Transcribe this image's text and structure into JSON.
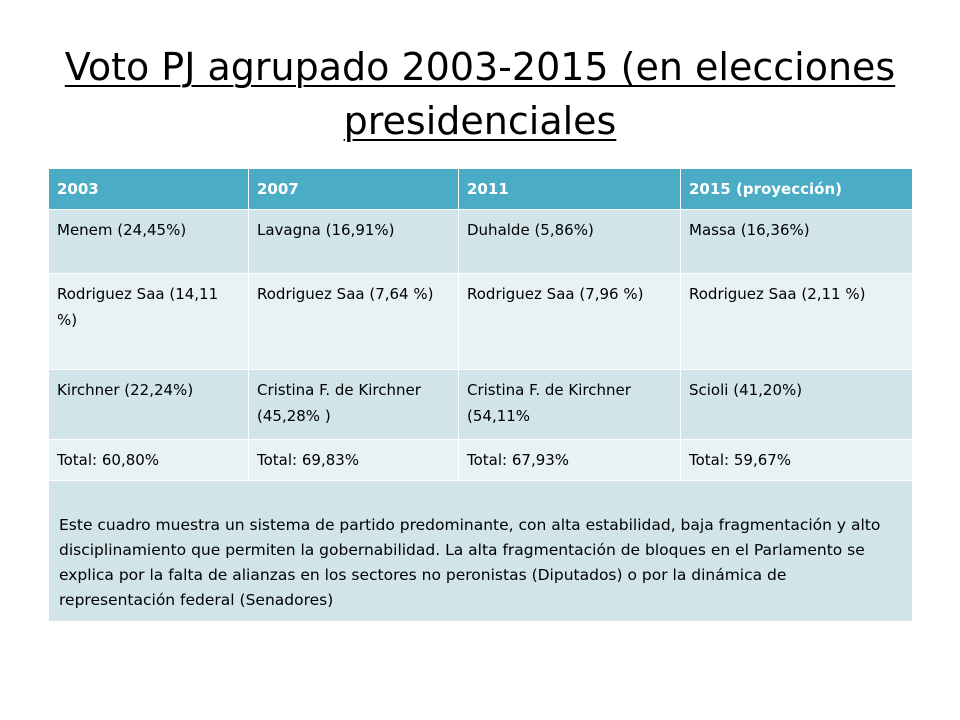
{
  "title": "Voto PJ agrupado 2003-2015 (en elecciones presidenciales",
  "table": {
    "headers": [
      "2003",
      "2007",
      "2011",
      "2015 (proyección)"
    ],
    "rows": [
      [
        "Menem (24,45%)",
        "Lavagna (16,91%)",
        "Duhalde (5,86%)",
        "Massa (16,36%)"
      ],
      [
        "Rodriguez Saa (14,11 %)",
        "Rodriguez Saa (7,64 %)",
        "Rodriguez Saa (7,96 %)",
        "Rodriguez Saa (2,11 %)"
      ],
      [
        "Kirchner (22,24%)",
        "Cristina F. de Kirchner (45,28% )",
        "Cristina F. de Kirchner (54,11%",
        "Scioli (41,20%)"
      ],
      [
        "Total: 60,80%",
        "Total: 69,83%",
        "Total: 67,93%",
        "Total: 59,67%"
      ]
    ],
    "note": "Este cuadro muestra un sistema de partido predominante, con alta estabilidad, baja fragmentación y alto disciplinamiento que permiten la gobernabilidad. La alta fragmentación de bloques en el Parlamento se explica por la falta de alianzas en los sectores no peronistas (Diputados) o por la dinámica de representación federal (Senadores)"
  },
  "colors": {
    "header_bg": "#4bacc6",
    "row_dark": "#d0e4ea",
    "row_light": "#e8f1f4"
  }
}
